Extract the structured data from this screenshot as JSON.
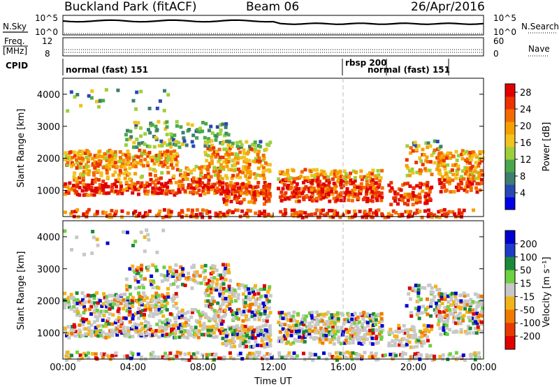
{
  "header": {
    "station": "Buckland Park (fitACF)",
    "beam": "Beam 06",
    "date": "26/Apr/2016"
  },
  "noise_panel": {
    "left_label": "N.Sky",
    "right_label": "N.Search",
    "left_ticks": [
      "10^5",
      "10^0"
    ],
    "right_ticks": [
      "10^5",
      "10^0"
    ]
  },
  "freq_panel": {
    "left_label_top": "Freq.",
    "left_label_bottom": "[MHz]",
    "right_label": "Nave",
    "left_ticks": [
      "12",
      "8"
    ],
    "right_ticks": [
      "60",
      "0"
    ]
  },
  "cpid_panel": {
    "label": "CPID",
    "segments": [
      {
        "text": "normal (fast) 151",
        "start_hour": 0.0
      },
      {
        "text": "rbsp 200",
        "start_hour": 16.0
      },
      {
        "text": "normal (fast) 151",
        "start_hour": 18.5
      }
    ]
  },
  "chart_data": [
    {
      "type": "heatmap",
      "panel": "power",
      "ylabel": "Slant Range [km]",
      "xlabel": "",
      "x_ticks": [
        "00:00",
        "04:00",
        "08:00",
        "12:00",
        "16:00",
        "20:00",
        "00:00"
      ],
      "x_range_hours": [
        0,
        24
      ],
      "ylim": [
        180,
        4500
      ],
      "y_ticks": [
        1000,
        2000,
        3000,
        4000
      ],
      "colorbar": {
        "label": "Power [dB]",
        "tick_values": [
          4,
          8,
          12,
          16,
          20,
          24,
          28
        ],
        "range": [
          0,
          30
        ],
        "colors": [
          "#0000e6",
          "#2848b4",
          "#3d7f6e",
          "#4aa84a",
          "#9bd03c",
          "#f2c21e",
          "#f5a000",
          "#f46a00",
          "#ec3200",
          "#e00000"
        ]
      },
      "data_gaps_hours": [
        [
          11.85,
          12.15
        ],
        [
          18.3,
          18.45
        ]
      ]
    },
    {
      "type": "heatmap",
      "panel": "velocity",
      "ylabel": "Slant Range [km]",
      "xlabel": "Time UT",
      "x_ticks": [
        "00:00",
        "04:00",
        "08:00",
        "12:00",
        "16:00",
        "20:00",
        "00:00"
      ],
      "x_range_hours": [
        0,
        24
      ],
      "ylim": [
        180,
        4500
      ],
      "y_ticks": [
        1000,
        2000,
        3000,
        4000
      ],
      "colorbar": {
        "label": "Velocity [m s⁻¹]",
        "tick_values": [
          200,
          100,
          50,
          15,
          -15,
          -50,
          -100,
          -200
        ],
        "colors": [
          "#0000d0",
          "#1e3cc8",
          "#1a8a3a",
          "#6fd040",
          "#c8c8c8",
          "#f2b418",
          "#f07a00",
          "#e83a00",
          "#e00000"
        ]
      },
      "data_gaps_hours": [
        [
          11.85,
          12.15
        ],
        [
          18.3,
          18.45
        ]
      ]
    }
  ]
}
